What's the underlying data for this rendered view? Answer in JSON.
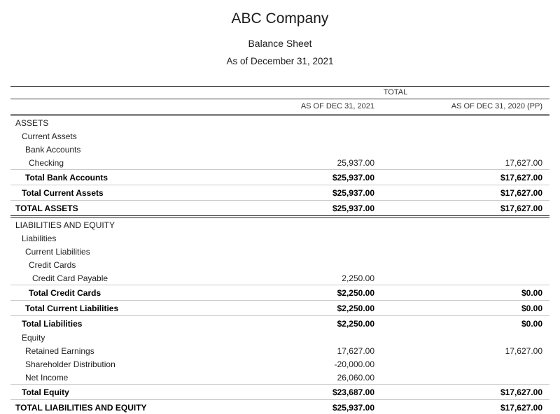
{
  "header": {
    "company": "ABC Company",
    "report_title": "Balance Sheet",
    "report_date": "As of December 31, 2021"
  },
  "table": {
    "group_header": "TOTAL",
    "columns": [
      "AS OF DEC 31, 2021",
      "AS OF DEC 31, 2020 (PP)"
    ],
    "rows": [
      {
        "label": "ASSETS",
        "indent": 0,
        "style": "plain",
        "val1": "",
        "val2": ""
      },
      {
        "label": "Current Assets",
        "indent": 1,
        "style": "plain",
        "val1": "",
        "val2": ""
      },
      {
        "label": "Bank Accounts",
        "indent": 2,
        "style": "plain",
        "val1": "",
        "val2": ""
      },
      {
        "label": "Checking",
        "indent": 3,
        "style": "plain",
        "val1": "25,937.00",
        "val2": "17,627.00"
      },
      {
        "label": "Total Bank Accounts",
        "indent": 2,
        "style": "total",
        "val1": "$25,937.00",
        "val2": "$17,627.00"
      },
      {
        "label": "Total Current Assets",
        "indent": 1,
        "style": "total",
        "val1": "$25,937.00",
        "val2": "$17,627.00"
      },
      {
        "label": "TOTAL ASSETS",
        "indent": 0,
        "style": "total section-end",
        "val1": "$25,937.00",
        "val2": "$17,627.00"
      },
      {
        "label": "LIABILITIES AND EQUITY",
        "indent": 0,
        "style": "plain",
        "val1": "",
        "val2": ""
      },
      {
        "label": "Liabilities",
        "indent": 1,
        "style": "plain",
        "val1": "",
        "val2": ""
      },
      {
        "label": "Current Liabilities",
        "indent": 2,
        "style": "plain",
        "val1": "",
        "val2": ""
      },
      {
        "label": "Credit Cards",
        "indent": 3,
        "style": "plain",
        "val1": "",
        "val2": ""
      },
      {
        "label": "Credit Card Payable",
        "indent": 4,
        "style": "plain",
        "val1": "2,250.00",
        "val2": ""
      },
      {
        "label": "Total Credit Cards",
        "indent": 3,
        "style": "total",
        "val1": "$2,250.00",
        "val2": "$0.00"
      },
      {
        "label": "Total Current Liabilities",
        "indent": 2,
        "style": "total",
        "val1": "$2,250.00",
        "val2": "$0.00"
      },
      {
        "label": "Total Liabilities",
        "indent": 1,
        "style": "total",
        "val1": "$2,250.00",
        "val2": "$0.00"
      },
      {
        "label": "Equity",
        "indent": 1,
        "style": "plain",
        "val1": "",
        "val2": ""
      },
      {
        "label": "Retained Earnings",
        "indent": 2,
        "style": "plain",
        "val1": "17,627.00",
        "val2": "17,627.00"
      },
      {
        "label": "Shareholder Distribution",
        "indent": 2,
        "style": "plain",
        "val1": "-20,000.00",
        "val2": ""
      },
      {
        "label": "Net Income",
        "indent": 2,
        "style": "plain",
        "val1": "26,060.00",
        "val2": ""
      },
      {
        "label": "Total Equity",
        "indent": 1,
        "style": "total",
        "val1": "$23,687.00",
        "val2": "$17,627.00"
      },
      {
        "label": "TOTAL LIABILITIES AND EQUITY",
        "indent": 0,
        "style": "total report-end",
        "val1": "$25,937.00",
        "val2": "$17,627.00"
      }
    ]
  }
}
